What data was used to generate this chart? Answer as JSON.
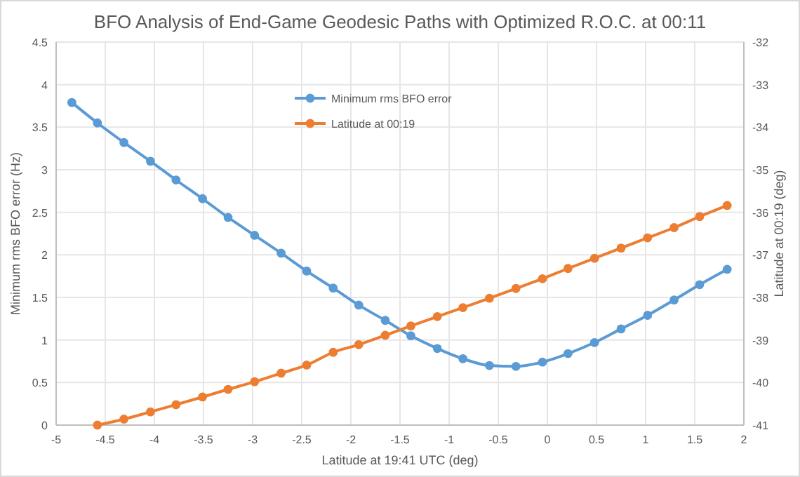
{
  "chart_data": {
    "type": "line",
    "title": "BFO Analysis of End-Game Geodesic Paths with Optimized R.O.C. at 00:11",
    "xlabel": "Latitude at 19:41 UTC (deg)",
    "ylabel": "Minimum rms BFO error (Hz)",
    "y2label": "Latitude at 00:19 (deg)",
    "xlim": [
      -5,
      2
    ],
    "xticks": [
      -5,
      -4.5,
      -4,
      -3.5,
      -3,
      -2.5,
      -2,
      -1.5,
      -1,
      -0.5,
      0,
      0.5,
      1,
      1.5,
      2
    ],
    "ylim": [
      0,
      4.5
    ],
    "yticks": [
      0,
      0.5,
      1,
      1.5,
      2,
      2.5,
      3,
      3.5,
      4,
      4.5
    ],
    "y2lim": [
      -41,
      -32
    ],
    "y2ticks": [
      -41,
      -40,
      -39,
      -38,
      -37,
      -36,
      -35,
      -34,
      -33,
      -32
    ],
    "grid": true,
    "legend": "top",
    "marker": "circle",
    "line_style": "solid",
    "series": [
      {
        "name": "Minimum rms BFO error",
        "color": "#5b9bd5",
        "x": [
          -4.84,
          -4.58,
          -4.31,
          -4.04,
          -3.78,
          -3.51,
          -3.25,
          -2.98,
          -2.71,
          -2.45,
          -2.18,
          -1.92,
          -1.65,
          -1.39,
          -1.12,
          -0.86,
          -0.59,
          -0.32,
          -0.05,
          0.21,
          0.48,
          0.75,
          1.02,
          1.29,
          1.55,
          1.83
        ],
        "values": [
          3.79,
          3.55,
          3.32,
          3.1,
          2.88,
          2.66,
          2.44,
          2.23,
          2.02,
          1.81,
          1.61,
          1.41,
          1.23,
          1.05,
          0.9,
          0.78,
          0.7,
          0.69,
          0.74,
          0.84,
          0.97,
          1.13,
          1.29,
          1.47,
          1.65,
          1.83
        ]
      },
      {
        "name": "Latitude at 00:19",
        "color": "#ed7d31",
        "axis": "y2",
        "x": [
          -4.58,
          -4.31,
          -4.04,
          -3.78,
          -3.51,
          -3.25,
          -2.98,
          -2.71,
          -2.45,
          -2.18,
          -1.92,
          -1.65,
          -1.39,
          -1.12,
          -0.86,
          -0.59,
          -0.32,
          -0.05,
          0.21,
          0.48,
          0.75,
          1.02,
          1.29,
          1.55,
          1.83
        ],
        "values": [
          -41,
          -40.86,
          -40.69,
          -40.52,
          -40.34,
          -40.16,
          -39.98,
          -39.78,
          -39.59,
          -39.29,
          -39.11,
          -38.89,
          -38.67,
          -38.45,
          -38.24,
          -38.02,
          -37.79,
          -37.56,
          -37.32,
          -37.08,
          -36.84,
          -36.6,
          -36.36,
          -36.1,
          -35.84
        ]
      }
    ]
  }
}
